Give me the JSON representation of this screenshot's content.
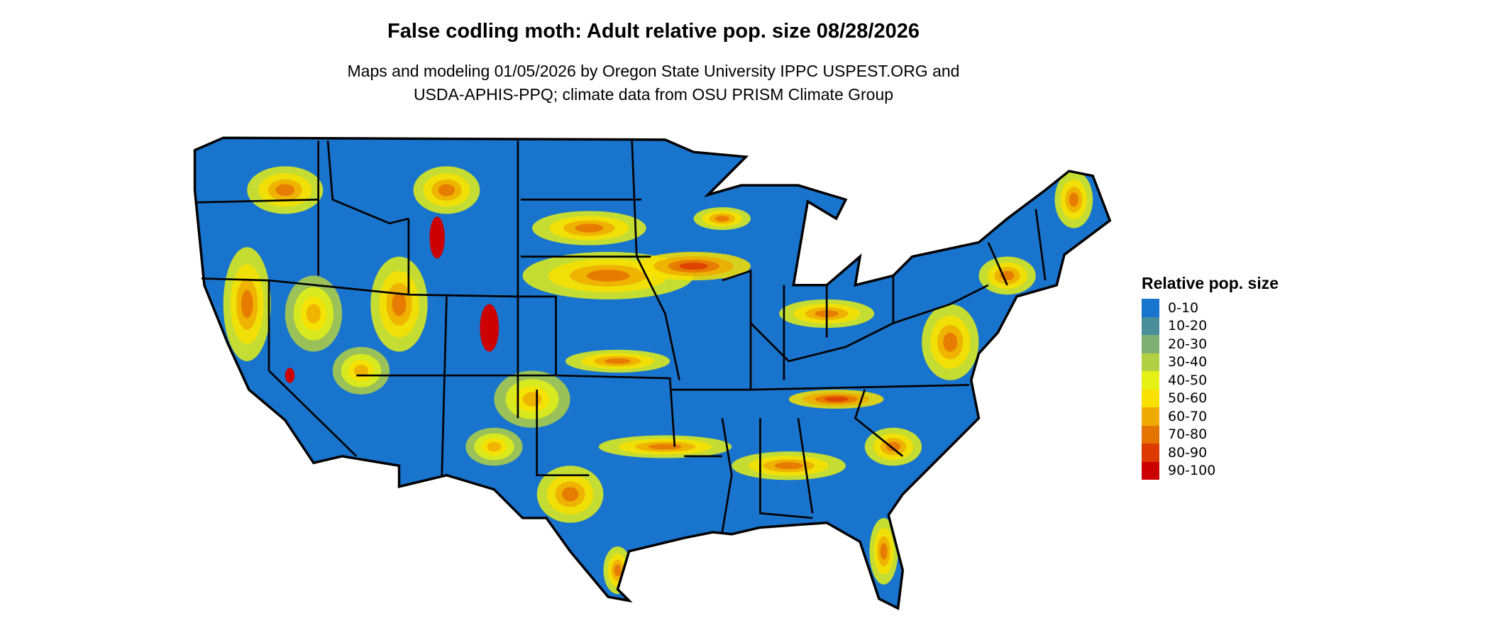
{
  "title": "False codling moth: Adult relative pop. size 08/28/2026",
  "subtitle_line1": "Maps and modeling 01/05/2026 by Oregon State University IPPC USPEST.ORG and",
  "subtitle_line2": "USDA-APHIS-PPQ; climate data from OSU PRISM Climate Group",
  "chart_data": {
    "type": "heatmap",
    "region": "Contiguous United States",
    "legend": {
      "title": "Relative pop. size",
      "placement": "right",
      "classes": [
        {
          "label": "0-10",
          "color": "#1874CD"
        },
        {
          "label": "10-20",
          "color": "#4A8E9C"
        },
        {
          "label": "20-30",
          "color": "#7FAF72"
        },
        {
          "label": "30-40",
          "color": "#B3D044"
        },
        {
          "label": "40-50",
          "color": "#E4F016"
        },
        {
          "label": "50-60",
          "color": "#F8E100"
        },
        {
          "label": "60-70",
          "color": "#EEAA00"
        },
        {
          "label": "70-80",
          "color": "#E57300"
        },
        {
          "label": "80-90",
          "color": "#DC3A00"
        },
        {
          "label": "90-100",
          "color": "#CD0000"
        }
      ]
    }
  }
}
